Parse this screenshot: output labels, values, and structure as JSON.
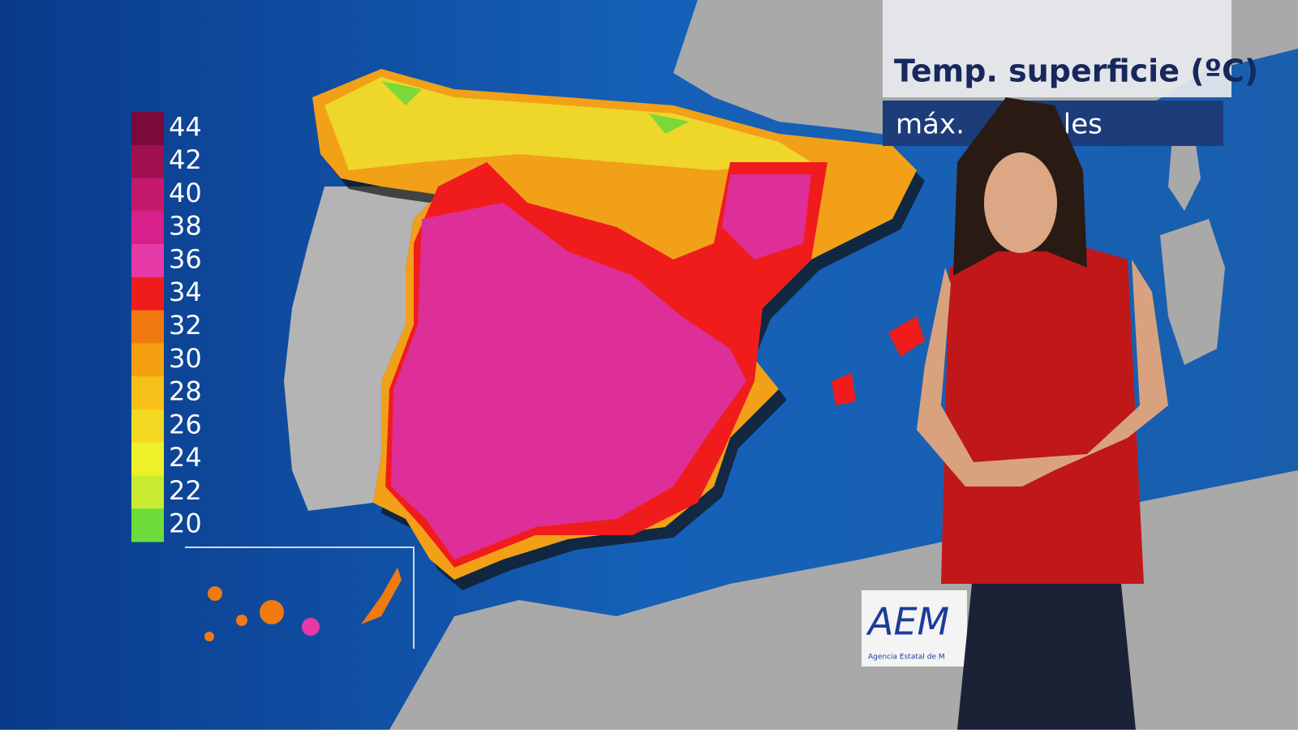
{
  "header": {
    "title": "Temp. superficie (ºC)",
    "subtitle_left": "máx.",
    "subtitle_right": "oles"
  },
  "legend": {
    "labels": [
      44,
      42,
      40,
      38,
      36,
      34,
      32,
      30,
      28,
      26,
      24,
      22,
      20
    ],
    "colors": [
      "#7a0a3a",
      "#a0104f",
      "#c41a6e",
      "#d8208a",
      "#e63aa8",
      "#f01c1c",
      "#f07a10",
      "#f5a010",
      "#f7c018",
      "#f2d820",
      "#eef02a",
      "#c8ec30",
      "#6cdc3a"
    ]
  },
  "logo": {
    "mark": "AEM",
    "caption": "Agencia Estatal de M"
  }
}
